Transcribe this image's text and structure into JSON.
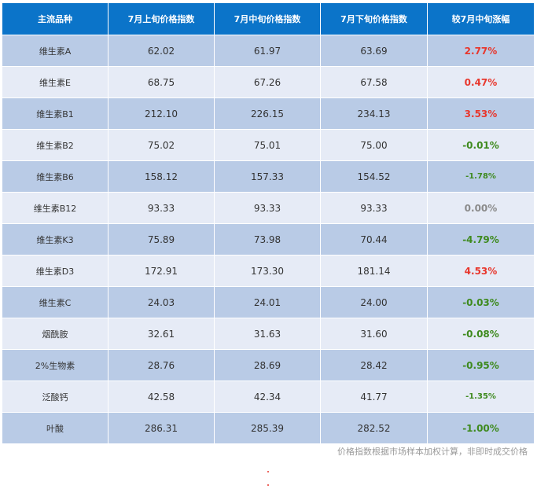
{
  "headers": [
    "主流品种",
    "7月上旬价格指数",
    "7月中旬价格指数",
    "7月下旬价格指数",
    "较7月中旬涨幅"
  ],
  "rows": [
    {
      "name": "维生素A",
      "early": "62.02",
      "mid": "61.97",
      "late": "63.69",
      "change": "2.77%",
      "trend": "up"
    },
    {
      "name": "维生素E",
      "early": "68.75",
      "mid": "67.26",
      "late": "67.58",
      "change": "0.47%",
      "trend": "up"
    },
    {
      "name": "维生素B1",
      "early": "212.10",
      "mid": "226.15",
      "late": "234.13",
      "change": "3.53%",
      "trend": "up"
    },
    {
      "name": "维生素B2",
      "early": "75.02",
      "mid": "75.01",
      "late": "75.00",
      "change": "-0.01%",
      "trend": "down"
    },
    {
      "name": "维生素B6",
      "early": "158.12",
      "mid": "157.33",
      "late": "154.52",
      "change": "-1.78%",
      "trend": "down",
      "small": true
    },
    {
      "name": "维生素B12",
      "early": "93.33",
      "mid": "93.33",
      "late": "93.33",
      "change": "0.00%",
      "trend": "flat"
    },
    {
      "name": "维生素K3",
      "early": "75.89",
      "mid": "73.98",
      "late": "70.44",
      "change": "-4.79%",
      "trend": "down"
    },
    {
      "name": "维生素D3",
      "early": "172.91",
      "mid": "173.30",
      "late": "181.14",
      "change": "4.53%",
      "trend": "up"
    },
    {
      "name": "维生素C",
      "early": "24.03",
      "mid": "24.01",
      "late": "24.00",
      "change": "-0.03%",
      "trend": "down"
    },
    {
      "name": "烟酰胺",
      "early": "32.61",
      "mid": "31.63",
      "late": "31.60",
      "change": "-0.08%",
      "trend": "down"
    },
    {
      "name": "2%生物素",
      "early": "28.76",
      "mid": "28.69",
      "late": "28.42",
      "change": "-0.95%",
      "trend": "down"
    },
    {
      "name": "泛酸钙",
      "early": "42.58",
      "mid": "42.34",
      "late": "41.77",
      "change": "-1.35%",
      "trend": "down",
      "small": true
    },
    {
      "name": "叶酸",
      "early": "286.31",
      "mid": "285.39",
      "late": "282.52",
      "change": "-1.00%",
      "trend": "down"
    }
  ],
  "footnote": "价格指数根据市场样本加权计算，非即时成交价格",
  "colors": {
    "header_bg": "#0b74c9",
    "up": "#e8372d",
    "down": "#3e8a1e",
    "flat": "#8a8a8a"
  }
}
